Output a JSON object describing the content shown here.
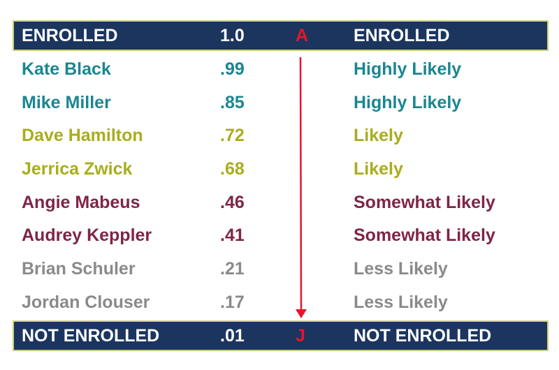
{
  "header": {
    "name": "ENROLLED",
    "score": "1.0",
    "marker": "A",
    "label": "ENROLLED"
  },
  "footer": {
    "name": "NOT ENROLLED",
    "score": ".01",
    "marker": "J",
    "label": "NOT ENROLLED"
  },
  "colors": {
    "band": "#1b355e",
    "band_border": "#c9cf7a",
    "marker": "#e8142a",
    "teal": "#1a8691",
    "olive": "#a9ad1e",
    "maroon": "#7e2548",
    "gray": "#8a8a8a"
  },
  "rows": [
    {
      "name": "Kate Black",
      "score": ".99",
      "label": "Highly Likely",
      "color": "#1a8691"
    },
    {
      "name": "Mike Miller",
      "score": ".85",
      "label": "Highly Likely",
      "color": "#1a8691"
    },
    {
      "name": "Dave Hamilton",
      "score": ".72",
      "label": "Likely",
      "color": "#a9ad1e"
    },
    {
      "name": "Jerrica Zwick",
      "score": ".68",
      "label": "Likely",
      "color": "#a9ad1e"
    },
    {
      "name": "Angie Mabeus",
      "score": ".46",
      "label": "Somewhat Likely",
      "color": "#7e2548"
    },
    {
      "name": "Audrey Keppler",
      "score": ".41",
      "label": "Somewhat Likely",
      "color": "#7e2548"
    },
    {
      "name": "Brian Schuler",
      "score": ".21",
      "label": "Less Likely",
      "color": "#8a8a8a"
    },
    {
      "name": "Jordan Clouser",
      "score": ".17",
      "label": "Less Likely",
      "color": "#8a8a8a"
    }
  ]
}
